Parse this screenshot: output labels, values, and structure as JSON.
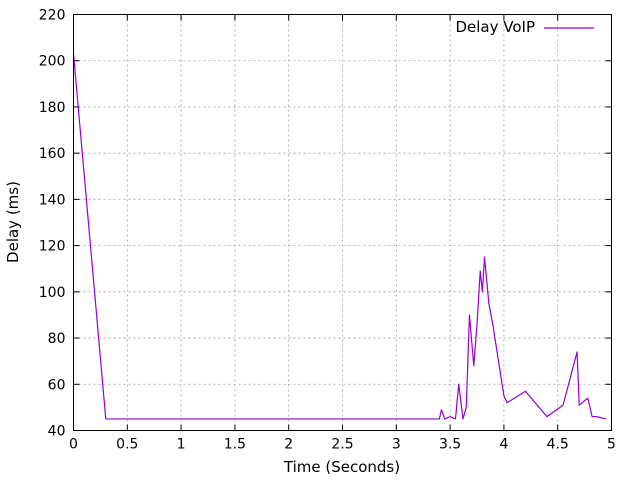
{
  "chart_data": {
    "type": "line",
    "title": "",
    "xlabel": "Time (Seconds)",
    "ylabel": "Delay (ms)",
    "xlim": [
      0,
      5
    ],
    "ylim": [
      40,
      220
    ],
    "x_ticks": [
      0,
      0.5,
      1,
      1.5,
      2,
      2.5,
      3,
      3.5,
      4,
      4.5,
      5
    ],
    "x_tick_labels": [
      "0",
      "0.5",
      "1",
      "1.5",
      "2",
      "2.5",
      "3",
      "3.5",
      "4",
      "4.5",
      "5"
    ],
    "y_ticks": [
      40,
      60,
      80,
      100,
      120,
      140,
      160,
      180,
      200,
      220
    ],
    "y_tick_labels": [
      "40",
      "60",
      "80",
      "100",
      "120",
      "140",
      "160",
      "180",
      "200",
      "220"
    ],
    "grid": true,
    "legend_position": "top-right",
    "series": [
      {
        "name": "Delay VoIP",
        "color": "#9400d3",
        "x": [
          0.0,
          0.3,
          1.0,
          2.0,
          3.0,
          3.4,
          3.42,
          3.45,
          3.5,
          3.55,
          3.58,
          3.62,
          3.65,
          3.68,
          3.72,
          3.75,
          3.78,
          3.8,
          3.82,
          3.84,
          3.86,
          3.9,
          4.0,
          4.03,
          4.2,
          4.4,
          4.55,
          4.68,
          4.7,
          4.78,
          4.82,
          4.86,
          4.95
        ],
        "y": [
          203,
          45,
          45,
          45,
          45,
          45,
          49,
          45,
          46,
          45,
          60,
          45,
          50,
          90,
          68,
          86,
          109,
          100,
          115,
          105,
          95,
          85,
          55,
          52,
          57,
          46,
          51,
          74,
          51,
          54,
          46,
          46,
          45
        ]
      }
    ]
  }
}
